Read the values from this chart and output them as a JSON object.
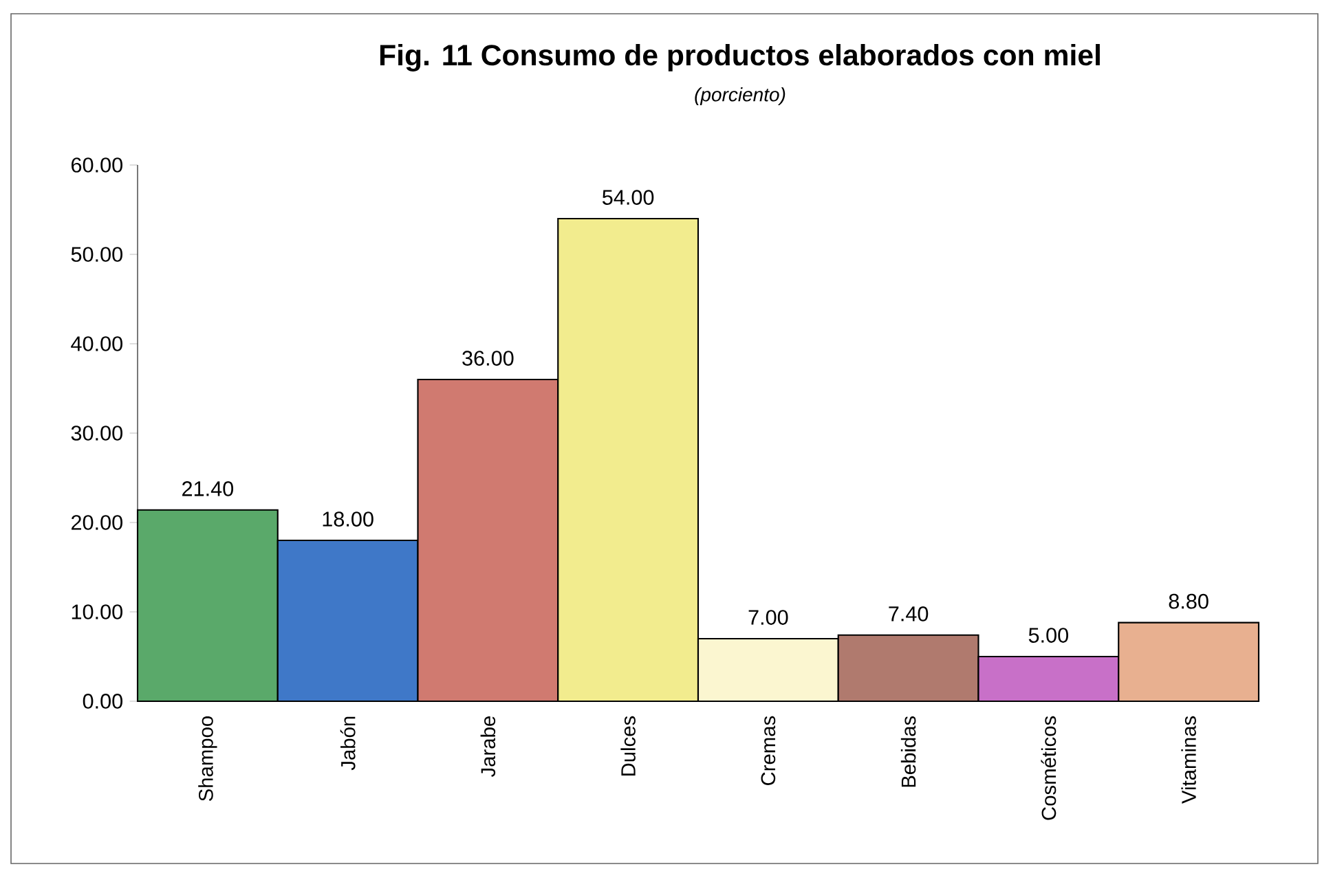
{
  "chart_data": {
    "type": "bar",
    "title": "Fig. 11 Consumo de productos elaborados con miel",
    "subtitle": "(porciento)",
    "categories": [
      "Shampoo",
      "Jabón",
      "Jarabe",
      "Dulces",
      "Cremas",
      "Bebidas",
      "Cosméticos",
      "Vitaminas"
    ],
    "values": [
      21.4,
      18,
      36,
      54,
      7,
      7.4,
      5,
      8.8
    ],
    "value_labels": [
      "21.40",
      "18.00",
      "36.00",
      "54.00",
      "7.00",
      "7.40",
      "5.00",
      "8.80"
    ],
    "colors": [
      "#5aa96a",
      "#3f78c8",
      "#d07a70",
      "#f2ec8e",
      "#fbf6d0",
      "#b07a6e",
      "#c870c8",
      "#e8b090"
    ],
    "ylim": [
      0,
      60
    ],
    "yticks": [
      {
        "value": 0,
        "label": "0.00"
      },
      {
        "value": 10,
        "label": "10.00"
      },
      {
        "value": 20,
        "label": "20.00"
      },
      {
        "value": 30,
        "label": "30.00"
      },
      {
        "value": 40,
        "label": "40.00"
      },
      {
        "value": 50,
        "label": "50.00"
      },
      {
        "value": 60,
        "label": "60.00"
      }
    ],
    "grid": false
  }
}
